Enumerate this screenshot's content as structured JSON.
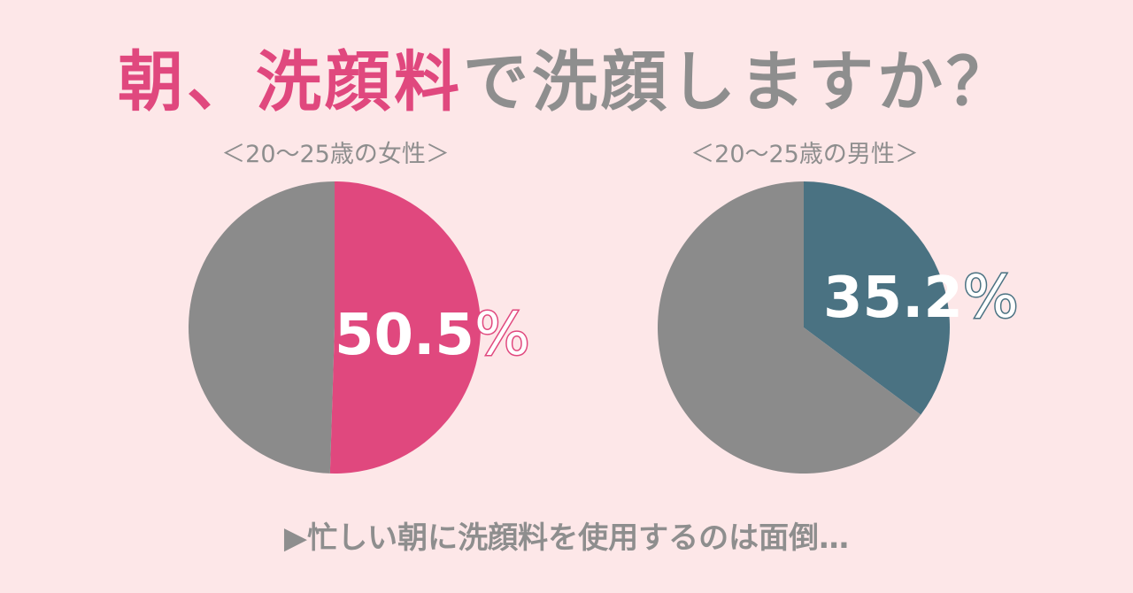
{
  "title": {
    "part1": "朝、",
    "part2": "洗顔料",
    "part3": "で洗顔しますか？"
  },
  "colors": {
    "pink": "#e0487e",
    "gray": "#8e8e8e",
    "pie_gray": "#8b8b8b",
    "teal": "#4a7282",
    "background": "#fde7e8"
  },
  "chart_data": [
    {
      "type": "pie",
      "title": "＜20〜25歳の女性＞",
      "slices": [
        {
          "label": "",
          "value": 50.5,
          "color": "#e0487e",
          "data_label": "50.5",
          "unit": "%"
        },
        {
          "label": "",
          "value": 49.5,
          "color": "#8b8b8b"
        }
      ]
    },
    {
      "type": "pie",
      "title": "＜20〜25歳の男性＞",
      "slices": [
        {
          "label": "",
          "value": 35.2,
          "color": "#4a7282",
          "data_label": "35.2",
          "unit": "%"
        },
        {
          "label": "",
          "value": 64.8,
          "color": "#8b8b8b"
        }
      ]
    }
  ],
  "footer": "▶忙しい朝に洗顔料を使用するのは面倒…"
}
